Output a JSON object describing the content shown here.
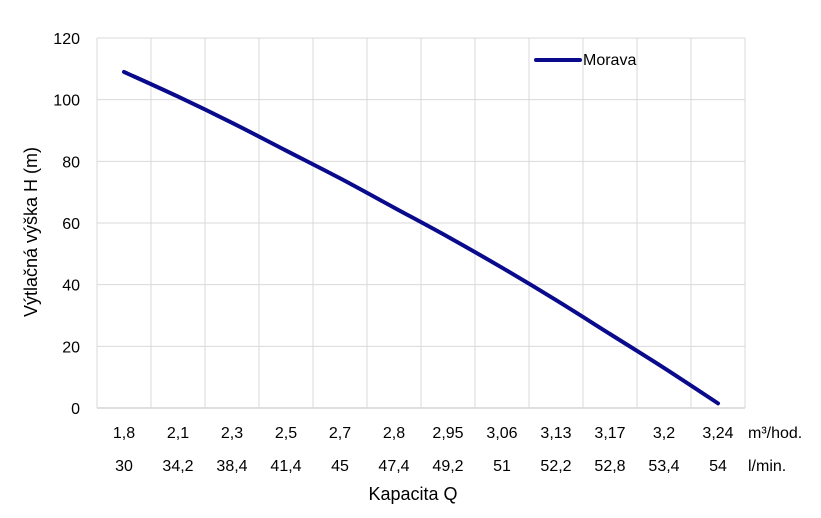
{
  "chart_data": {
    "type": "line",
    "title": "",
    "ylabel": "Výtlačná výška H (m)",
    "xlabel": "Kapacita Q",
    "ylim": [
      0,
      120
    ],
    "yticks": [
      "0",
      "20",
      "40",
      "60",
      "80",
      "100",
      "120"
    ],
    "grid": true,
    "legend_position": "top-right",
    "categories_primary": [
      "1,8",
      "2,1",
      "2,3",
      "2,5",
      "2,7",
      "2,8",
      "2,95",
      "3,06",
      "3,13",
      "3,17",
      "3,2",
      "3,24"
    ],
    "categories_secondary": [
      "30",
      "34,2",
      "38,4",
      "41,4",
      "45",
      "47,4",
      "49,2",
      "51",
      "52,2",
      "52,8",
      "53,4",
      "54"
    ],
    "unit_primary": "m³/hod.",
    "unit_secondary": "l/min.",
    "series": [
      {
        "name": "Morava",
        "color": "#0a0a8c",
        "values": [
          109,
          101,
          92.5,
          83.5,
          74.5,
          65,
          55.5,
          45.5,
          35,
          24,
          13,
          1.5
        ]
      }
    ]
  }
}
